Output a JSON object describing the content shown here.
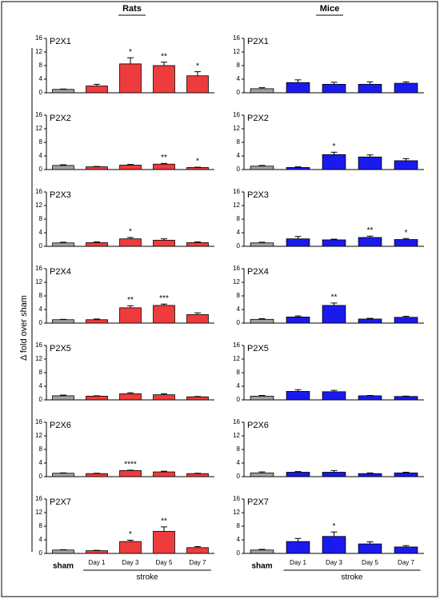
{
  "columns": [
    "Rats",
    "Mice"
  ],
  "ylabel": "Δ fold over sham",
  "group_label": "stroke",
  "chart_data": [
    {
      "type": "bar",
      "title": "P2X1",
      "values": [
        1,
        2,
        8.5,
        8,
        5
      ],
      "errors": [
        0.1,
        0.5,
        1.8,
        1,
        1.2
      ],
      "significance": [
        null,
        null,
        "*",
        "**",
        "*"
      ],
      "colors": [
        "#a0a0a0",
        "#ee3b3b",
        "#ee3b3b",
        "#ee3b3b",
        "#ee3b3b"
      ],
      "ylim": [
        0,
        16
      ],
      "yticks": [
        0,
        4,
        8,
        12,
        16
      ]
    },
    {
      "type": "bar",
      "title": "P2X2",
      "values": [
        1.2,
        0.8,
        1.3,
        1.6,
        0.6
      ],
      "errors": [
        0.2,
        0.1,
        0.2,
        0.2,
        0.1
      ],
      "significance": [
        null,
        null,
        null,
        "**",
        "*"
      ],
      "colors": [
        "#a0a0a0",
        "#ee3b3b",
        "#ee3b3b",
        "#ee3b3b",
        "#ee3b3b"
      ],
      "ylim": [
        0,
        16
      ],
      "yticks": [
        0,
        4,
        8,
        12,
        16
      ]
    },
    {
      "type": "bar",
      "title": "P2X3",
      "values": [
        1,
        1.1,
        2.2,
        1.8,
        1.1
      ],
      "errors": [
        0.2,
        0.2,
        0.4,
        0.4,
        0.2
      ],
      "significance": [
        null,
        null,
        "*",
        null,
        null
      ],
      "colors": [
        "#a0a0a0",
        "#ee3b3b",
        "#ee3b3b",
        "#ee3b3b",
        "#ee3b3b"
      ],
      "ylim": [
        0,
        16
      ],
      "yticks": [
        0,
        4,
        8,
        12,
        16
      ]
    },
    {
      "type": "bar",
      "title": "P2X4",
      "values": [
        1,
        1,
        4.5,
        5.2,
        2.5
      ],
      "errors": [
        0.1,
        0.2,
        0.6,
        0.4,
        0.5
      ],
      "significance": [
        null,
        null,
        "**",
        "***",
        null
      ],
      "colors": [
        "#a0a0a0",
        "#ee3b3b",
        "#ee3b3b",
        "#ee3b3b",
        "#ee3b3b"
      ],
      "ylim": [
        0,
        16
      ],
      "yticks": [
        0,
        4,
        8,
        12,
        16
      ]
    },
    {
      "type": "bar",
      "title": "P2X5",
      "values": [
        1.2,
        1.1,
        1.8,
        1.5,
        0.9
      ],
      "errors": [
        0.2,
        0.1,
        0.3,
        0.3,
        0.1
      ],
      "significance": [
        null,
        null,
        null,
        null,
        null
      ],
      "colors": [
        "#a0a0a0",
        "#ee3b3b",
        "#ee3b3b",
        "#ee3b3b",
        "#ee3b3b"
      ],
      "ylim": [
        0,
        16
      ],
      "yticks": [
        0,
        4,
        8,
        12,
        16
      ]
    },
    {
      "type": "bar",
      "title": "P2X6",
      "values": [
        1,
        0.9,
        1.8,
        1.4,
        0.9
      ],
      "errors": [
        0.1,
        0.1,
        0.1,
        0.2,
        0.1
      ],
      "significance": [
        null,
        null,
        "****",
        null,
        null
      ],
      "colors": [
        "#a0a0a0",
        "#ee3b3b",
        "#ee3b3b",
        "#ee3b3b",
        "#ee3b3b"
      ],
      "ylim": [
        0,
        16
      ],
      "yticks": [
        0,
        4,
        8,
        12,
        16
      ]
    },
    {
      "type": "bar",
      "title": "P2X7",
      "categories": [
        "sham",
        "Day 1",
        "Day 3",
        "Day 5",
        "Day 7"
      ],
      "values": [
        1,
        0.8,
        3.5,
        6.5,
        1.7
      ],
      "errors": [
        0.1,
        0.1,
        0.4,
        1.3,
        0.3
      ],
      "significance": [
        null,
        null,
        "*",
        "**",
        null
      ],
      "colors": [
        "#a0a0a0",
        "#ee3b3b",
        "#ee3b3b",
        "#ee3b3b",
        "#ee3b3b"
      ],
      "ylim": [
        0,
        16
      ],
      "yticks": [
        0,
        4,
        8,
        12,
        16
      ]
    },
    {
      "type": "bar",
      "title": "P2X1",
      "values": [
        1.2,
        3,
        2.5,
        2.5,
        2.8
      ],
      "errors": [
        0.3,
        0.8,
        0.6,
        0.7,
        0.4
      ],
      "significance": [
        null,
        null,
        null,
        null,
        null
      ],
      "colors": [
        "#a0a0a0",
        "#1a1aee",
        "#1a1aee",
        "#1a1aee",
        "#1a1aee"
      ],
      "ylim": [
        0,
        16
      ],
      "yticks": [
        0,
        4,
        8,
        12,
        16
      ]
    },
    {
      "type": "bar",
      "title": "P2X2",
      "values": [
        1,
        0.6,
        4.4,
        3.7,
        2.6
      ],
      "errors": [
        0.2,
        0.2,
        0.7,
        0.6,
        0.6
      ],
      "significance": [
        null,
        null,
        "*",
        null,
        null
      ],
      "colors": [
        "#a0a0a0",
        "#1a1aee",
        "#1a1aee",
        "#1a1aee",
        "#1a1aee"
      ],
      "ylim": [
        0,
        16
      ],
      "yticks": [
        0,
        4,
        8,
        12,
        16
      ]
    },
    {
      "type": "bar",
      "title": "P2X3",
      "values": [
        1,
        2.2,
        1.9,
        2.6,
        2
      ],
      "errors": [
        0.2,
        0.7,
        0.2,
        0.4,
        0.3
      ],
      "significance": [
        null,
        null,
        null,
        "**",
        "*"
      ],
      "colors": [
        "#a0a0a0",
        "#1a1aee",
        "#1a1aee",
        "#1a1aee",
        "#1a1aee"
      ],
      "ylim": [
        0,
        16
      ],
      "yticks": [
        0,
        4,
        8,
        12,
        16
      ]
    },
    {
      "type": "bar",
      "title": "P2X4",
      "values": [
        1.1,
        1.8,
        5.2,
        1.2,
        1.7
      ],
      "errors": [
        0.2,
        0.3,
        0.7,
        0.2,
        0.3
      ],
      "significance": [
        null,
        null,
        "**",
        null,
        null
      ],
      "colors": [
        "#a0a0a0",
        "#1a1aee",
        "#1a1aee",
        "#1a1aee",
        "#1a1aee"
      ],
      "ylim": [
        0,
        16
      ],
      "yticks": [
        0,
        4,
        8,
        12,
        16
      ]
    },
    {
      "type": "bar",
      "title": "P2X5",
      "values": [
        1.1,
        2.5,
        2.4,
        1.2,
        1
      ],
      "errors": [
        0.2,
        0.5,
        0.4,
        0.1,
        0.1
      ],
      "significance": [
        null,
        null,
        null,
        null,
        null
      ],
      "colors": [
        "#a0a0a0",
        "#1a1aee",
        "#1a1aee",
        "#1a1aee",
        "#1a1aee"
      ],
      "ylim": [
        0,
        16
      ],
      "yticks": [
        0,
        4,
        8,
        12,
        16
      ]
    },
    {
      "type": "bar",
      "title": "P2X6",
      "values": [
        1.1,
        1.3,
        1.3,
        0.9,
        1.1
      ],
      "errors": [
        0.3,
        0.2,
        0.5,
        0.2,
        0.2
      ],
      "significance": [
        null,
        null,
        null,
        null,
        null
      ],
      "colors": [
        "#a0a0a0",
        "#1a1aee",
        "#1a1aee",
        "#1a1aee",
        "#1a1aee"
      ],
      "ylim": [
        0,
        16
      ],
      "yticks": [
        0,
        4,
        8,
        12,
        16
      ]
    },
    {
      "type": "bar",
      "title": "P2X7",
      "categories": [
        "sham",
        "Day 1",
        "Day 3",
        "Day 5",
        "Day 7"
      ],
      "values": [
        1,
        3.5,
        5,
        2.8,
        1.9
      ],
      "errors": [
        0.2,
        0.9,
        1.3,
        0.6,
        0.4
      ],
      "significance": [
        null,
        null,
        "*",
        null,
        null
      ],
      "colors": [
        "#a0a0a0",
        "#1a1aee",
        "#1a1aee",
        "#1a1aee",
        "#1a1aee"
      ],
      "ylim": [
        0,
        16
      ],
      "yticks": [
        0,
        4,
        8,
        12,
        16
      ]
    }
  ]
}
